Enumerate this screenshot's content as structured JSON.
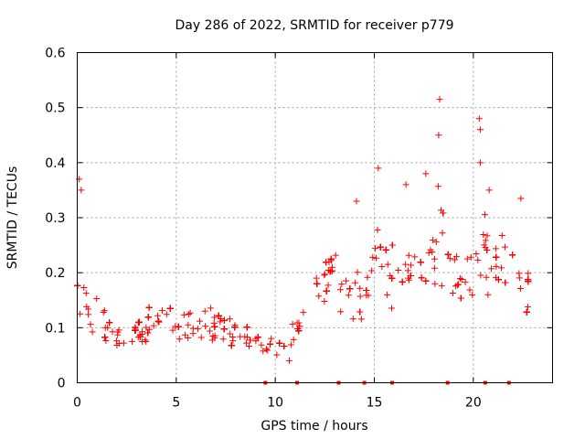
{
  "chart_data": {
    "type": "scatter",
    "title": "Day 286 of 2022, SRMTID for receiver p779",
    "xlabel": "GPS time / hours",
    "ylabel": "SRMTID / TECUs",
    "xlim": [
      0,
      24
    ],
    "ylim": [
      0,
      0.6
    ],
    "xticks": [
      0,
      5,
      10,
      15,
      20
    ],
    "yticks": [
      0,
      0.1,
      0.2,
      0.3,
      0.4,
      0.5,
      0.6
    ],
    "xtick_labels": [
      "0",
      "5",
      "10",
      "15",
      "20"
    ],
    "ytick_labels": [
      "0",
      "0.1",
      "0.2",
      "0.3",
      "0.4",
      "0.5",
      "0.6"
    ],
    "grid": true,
    "marker": "+",
    "color": "#ff0000",
    "data_gaps_x": [
      9.5,
      11.1,
      13.2,
      14.5,
      15.9,
      18.7,
      20.6,
      21.8
    ],
    "series": [
      {
        "name": "SRMTID",
        "trend_x": [
          0.0,
          0.1,
          0.3,
          0.6,
          1.0,
          1.5,
          2.0,
          2.5,
          3.0,
          4.0,
          5.0,
          6.0,
          7.0,
          8.0,
          8.5,
          9.0,
          9.5,
          10.0,
          10.5,
          11.0,
          11.5,
          12.0,
          12.5,
          13.0,
          13.5,
          14.0,
          14.5,
          15.0,
          15.5,
          16.0,
          16.5,
          17.0,
          17.5,
          18.0,
          18.3,
          18.6,
          19.0,
          19.5,
          20.0,
          20.3,
          20.6,
          21.0,
          21.5,
          22.0,
          22.5,
          22.9
        ],
        "trend_y": [
          0.14,
          0.22,
          0.18,
          0.13,
          0.12,
          0.1,
          0.08,
          0.09,
          0.1,
          0.1,
          0.1,
          0.11,
          0.1,
          0.09,
          0.08,
          0.07,
          0.065,
          0.07,
          0.07,
          0.09,
          0.13,
          0.16,
          0.18,
          0.2,
          0.17,
          0.15,
          0.17,
          0.23,
          0.21,
          0.19,
          0.2,
          0.22,
          0.2,
          0.21,
          0.3,
          0.23,
          0.2,
          0.19,
          0.2,
          0.25,
          0.23,
          0.22,
          0.2,
          0.2,
          0.17,
          0.12
        ],
        "spread_y": [
          0.1,
          0.12,
          0.08,
          0.06,
          0.05,
          0.045,
          0.04,
          0.05,
          0.045,
          0.045,
          0.045,
          0.05,
          0.05,
          0.045,
          0.04,
          0.035,
          0.035,
          0.035,
          0.04,
          0.05,
          0.06,
          0.07,
          0.08,
          0.08,
          0.08,
          0.07,
          0.09,
          0.1,
          0.1,
          0.09,
          0.1,
          0.1,
          0.09,
          0.1,
          0.14,
          0.12,
          0.08,
          0.08,
          0.09,
          0.13,
          0.1,
          0.1,
          0.09,
          0.09,
          0.09,
          0.07
        ],
        "notable_points": [
          {
            "x": 0.1,
            "y": 0.37
          },
          {
            "x": 0.2,
            "y": 0.35
          },
          {
            "x": 15.2,
            "y": 0.39
          },
          {
            "x": 16.6,
            "y": 0.36
          },
          {
            "x": 18.3,
            "y": 0.515
          },
          {
            "x": 18.25,
            "y": 0.45
          },
          {
            "x": 20.3,
            "y": 0.48
          },
          {
            "x": 20.35,
            "y": 0.46
          },
          {
            "x": 20.35,
            "y": 0.4
          },
          {
            "x": 17.6,
            "y": 0.38
          },
          {
            "x": 20.8,
            "y": 0.35
          },
          {
            "x": 22.4,
            "y": 0.335
          },
          {
            "x": 14.1,
            "y": 0.33
          }
        ]
      }
    ]
  }
}
